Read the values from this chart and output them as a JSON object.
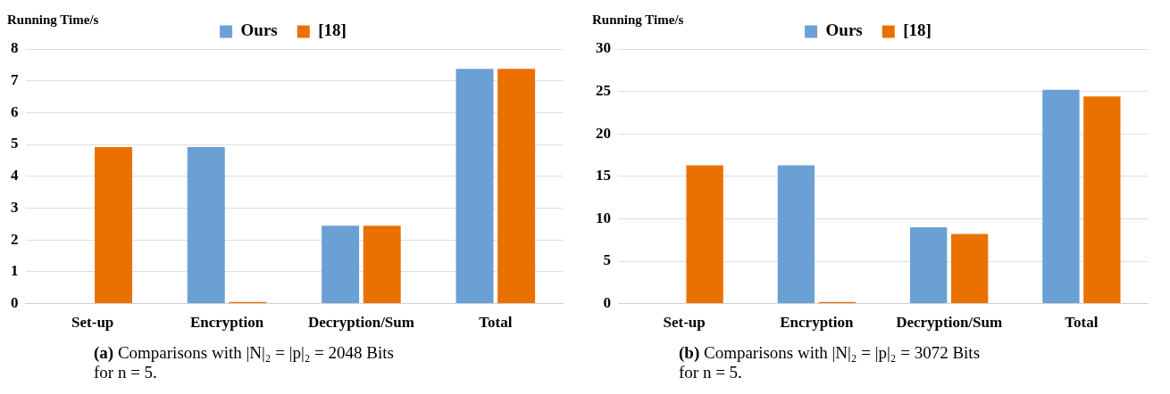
{
  "chart_data": [
    {
      "type": "bar",
      "ylabel": "Running Time/s",
      "categories": [
        "Set-up",
        "Encryption",
        "Decryption/Sum",
        "Total"
      ],
      "series": [
        {
          "name": "Ours",
          "color": "#6aa0d4",
          "values": [
            0,
            4.92,
            2.45,
            7.38
          ]
        },
        {
          "name": "[18]",
          "color": "#ea7100",
          "values": [
            4.92,
            0.05,
            2.45,
            7.38
          ]
        }
      ],
      "ylim": [
        0,
        8
      ],
      "yticks": [
        0,
        1,
        2,
        3,
        4,
        5,
        6,
        7,
        8
      ],
      "grid": "y",
      "legend": "top",
      "annotations": [
        "(a) Comparisons with |N|₂ = |p|₂ = 2048 Bits for n = 5."
      ]
    },
    {
      "type": "bar",
      "ylabel": "Running Time/s",
      "categories": [
        "Set-up",
        "Encryption",
        "Decryption/Sum",
        "Total"
      ],
      "series": [
        {
          "name": "Ours",
          "color": "#6aa0d4",
          "values": [
            0,
            16.3,
            9.0,
            25.2
          ]
        },
        {
          "name": "[18]",
          "color": "#ea7100",
          "values": [
            16.3,
            0.2,
            8.2,
            24.4
          ]
        }
      ],
      "ylim": [
        0,
        30
      ],
      "yticks": [
        0,
        5,
        10,
        15,
        20,
        25,
        30
      ],
      "grid": "y",
      "legend": "top",
      "annotations": [
        "(b) Comparisons with |N|₂ = |p|₂ = 3072 Bits for n = 5."
      ]
    }
  ]
}
